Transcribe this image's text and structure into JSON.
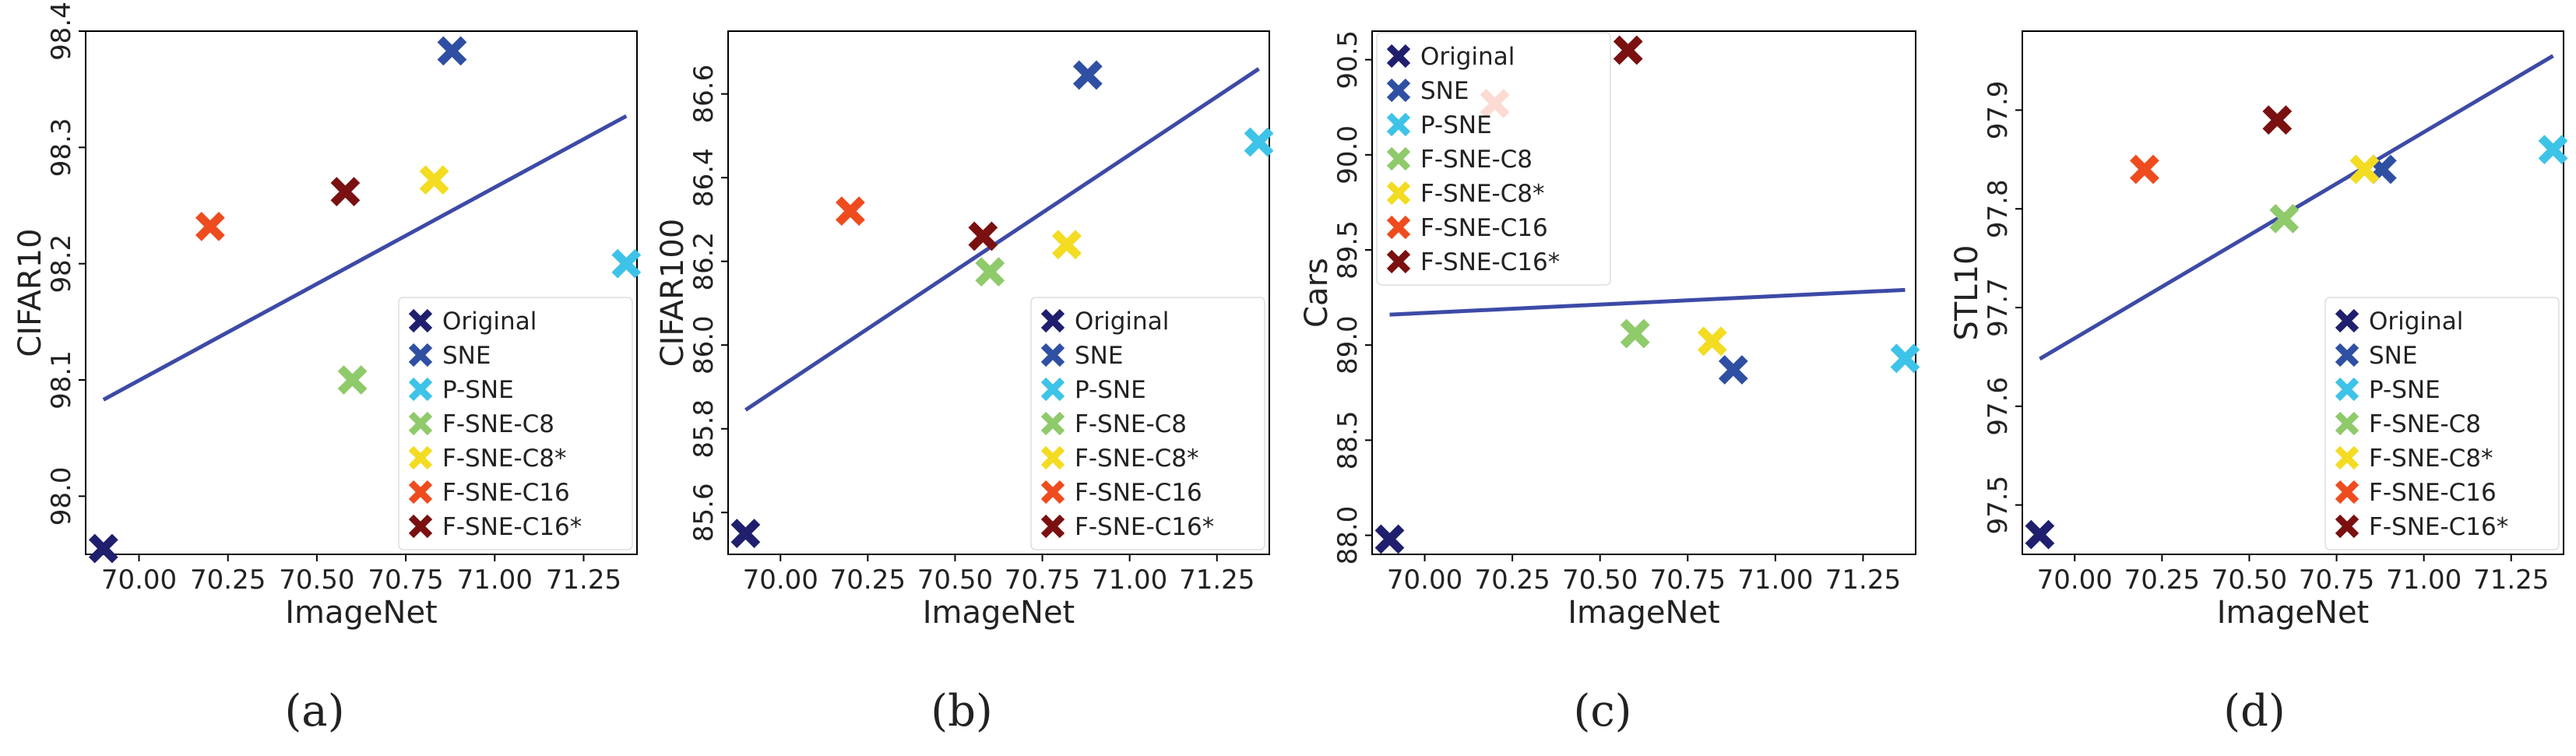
{
  "figure": {
    "markers": {
      "Original": "#1f1f6e",
      "SNE": "#2f4fa3",
      "P-SNE": "#3ec3e8",
      "F-SNE-C8": "#8fca6b",
      "F-SNE-C8*": "#f3dc21",
      "F-SNE-C16": "#ee4c1f",
      "F-SNE-C16*": "#7a1010"
    },
    "fit_line_color": "#3d4aa6"
  },
  "chart_data": [
    {
      "type": "scatter",
      "panel": "(a)",
      "xlabel": "ImageNet",
      "ylabel": "CIFAR10",
      "xlim": [
        69.85,
        71.4
      ],
      "ylim": [
        97.95,
        98.4
      ],
      "xticks": [
        "70.00",
        "70.25",
        "70.50",
        "70.75",
        "71.00",
        "71.25"
      ],
      "yticks": [
        "98.0",
        "98.1",
        "98.2",
        "98.3",
        "98.4"
      ],
      "legend_position": "lower-right",
      "points": [
        {
          "name": "Original",
          "x": 69.9,
          "y": 97.955
        },
        {
          "name": "SNE",
          "x": 70.88,
          "y": 98.383
        },
        {
          "name": "P-SNE",
          "x": 71.37,
          "y": 98.2
        },
        {
          "name": "F-SNE-C8",
          "x": 70.6,
          "y": 98.1
        },
        {
          "name": "F-SNE-C8*",
          "x": 70.83,
          "y": 98.272
        },
        {
          "name": "F-SNE-C16",
          "x": 70.2,
          "y": 98.232
        },
        {
          "name": "F-SNE-C16*",
          "x": 70.58,
          "y": 98.262
        }
      ],
      "fit_line": [
        {
          "x": 69.9,
          "y": 98.083
        },
        {
          "x": 71.37,
          "y": 98.327
        }
      ]
    },
    {
      "type": "scatter",
      "panel": "(b)",
      "xlabel": "ImageNet",
      "ylabel": "CIFAR100",
      "xlim": [
        69.85,
        71.4
      ],
      "ylim": [
        85.5,
        86.75
      ],
      "xticks": [
        "70.00",
        "70.25",
        "70.50",
        "70.75",
        "71.00",
        "71.25"
      ],
      "yticks": [
        "85.6",
        "85.8",
        "86.0",
        "86.2",
        "86.4",
        "86.6"
      ],
      "legend_position": "lower-right",
      "points": [
        {
          "name": "Original",
          "x": 69.9,
          "y": 85.55
        },
        {
          "name": "SNE",
          "x": 70.88,
          "y": 86.645
        },
        {
          "name": "P-SNE",
          "x": 71.37,
          "y": 86.485
        },
        {
          "name": "F-SNE-C8",
          "x": 70.6,
          "y": 86.175
        },
        {
          "name": "F-SNE-C8*",
          "x": 70.82,
          "y": 86.24
        },
        {
          "name": "F-SNE-C16",
          "x": 70.2,
          "y": 86.32
        },
        {
          "name": "F-SNE-C16*",
          "x": 70.58,
          "y": 86.26
        }
      ],
      "fit_line": [
        {
          "x": 69.9,
          "y": 85.845
        },
        {
          "x": 71.37,
          "y": 86.66
        }
      ]
    },
    {
      "type": "scatter",
      "panel": "(c)",
      "xlabel": "ImageNet",
      "ylabel": "Cars",
      "xlim": [
        69.85,
        71.4
      ],
      "ylim": [
        87.9,
        90.65
      ],
      "xticks": [
        "70.00",
        "70.25",
        "70.50",
        "70.75",
        "71.00",
        "71.25"
      ],
      "yticks": [
        "88.0",
        "88.5",
        "89.0",
        "89.5",
        "90.0",
        "90.5"
      ],
      "legend_position": "upper-left",
      "points": [
        {
          "name": "Original",
          "x": 69.9,
          "y": 87.98
        },
        {
          "name": "SNE",
          "x": 70.88,
          "y": 88.87
        },
        {
          "name": "P-SNE",
          "x": 71.37,
          "y": 88.93
        },
        {
          "name": "F-SNE-C8",
          "x": 70.6,
          "y": 89.06
        },
        {
          "name": "F-SNE-C8*",
          "x": 70.82,
          "y": 89.02
        },
        {
          "name": "F-SNE-C16",
          "x": 70.2,
          "y": 90.27
        },
        {
          "name": "F-SNE-C16*",
          "x": 70.58,
          "y": 90.55
        }
      ],
      "fit_line": [
        {
          "x": 69.9,
          "y": 89.16
        },
        {
          "x": 71.37,
          "y": 89.29
        }
      ]
    },
    {
      "type": "scatter",
      "panel": "(d)",
      "xlabel": "ImageNet",
      "ylabel": "STL10",
      "xlim": [
        69.85,
        71.4
      ],
      "ylim": [
        97.45,
        97.98
      ],
      "xticks": [
        "70.00",
        "70.25",
        "70.50",
        "70.75",
        "71.00",
        "71.25"
      ],
      "yticks": [
        "97.5",
        "97.6",
        "97.7",
        "97.8",
        "97.9"
      ],
      "legend_position": "lower-right",
      "points": [
        {
          "name": "Original",
          "x": 69.9,
          "y": 97.47
        },
        {
          "name": "SNE",
          "x": 70.88,
          "y": 97.84
        },
        {
          "name": "P-SNE",
          "x": 71.37,
          "y": 97.86
        },
        {
          "name": "F-SNE-C8",
          "x": 70.6,
          "y": 97.79
        },
        {
          "name": "F-SNE-C8*",
          "x": 70.83,
          "y": 97.84
        },
        {
          "name": "F-SNE-C16",
          "x": 70.2,
          "y": 97.84
        },
        {
          "name": "F-SNE-C16*",
          "x": 70.58,
          "y": 97.89
        }
      ],
      "fit_line": [
        {
          "x": 69.9,
          "y": 97.648
        },
        {
          "x": 71.37,
          "y": 97.955
        }
      ]
    }
  ]
}
